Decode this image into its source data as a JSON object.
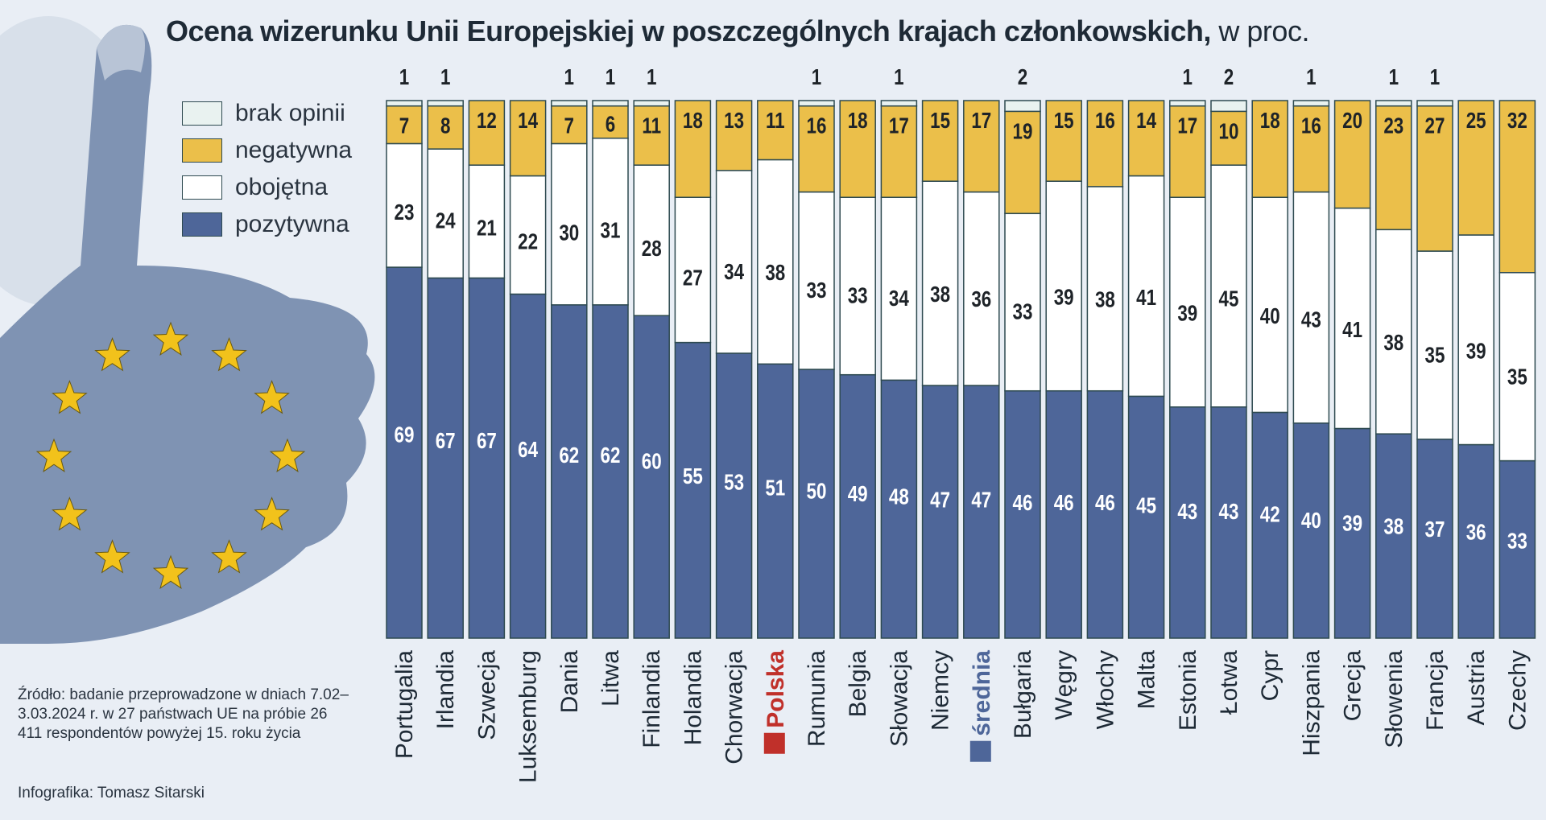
{
  "title": "Ocena wizerunku Unii Europejskiej w poszczególnych krajach członkowskich,",
  "title_unit": "w proc.",
  "legend": [
    {
      "label": "brak opinii",
      "color": "#e9f2f0"
    },
    {
      "label": "negatywna",
      "color": "#ebbf4a"
    },
    {
      "label": "obojętna",
      "color": "#ffffff"
    },
    {
      "label": "pozytywna",
      "color": "#4e6699"
    }
  ],
  "source": "Źródło: badanie przeprowadzone w dniach 7.02–3.03.2024 r. w 27 państwach UE na próbie 26 411 respondentów powyżej 15. roku życia",
  "credit": "Infografika: Tomasz Sitarski",
  "chart_data": {
    "type": "bar",
    "stacked": true,
    "orientation": "vertical",
    "title": "Ocena wizerunku Unii Europejskiej w poszczególnych krajach członkowskich, w proc.",
    "categories": [
      "Portugalia",
      "Irlandia",
      "Szwecja",
      "Luksemburg",
      "Dania",
      "Litwa",
      "Finlandia",
      "Holandia",
      "Chorwacja",
      "Polska",
      "Rumunia",
      "Belgia",
      "Słowacja",
      "Niemcy",
      "średnia",
      "Bułgaria",
      "Węgry",
      "Włochy",
      "Malta",
      "Estonia",
      "Łotwa",
      "Cypr",
      "Hiszpania",
      "Grecja",
      "Słowenia",
      "Francja",
      "Austria",
      "Czechy"
    ],
    "highlight": {
      "Polska": "#c0302a",
      "średnia": "#4e6699"
    },
    "series": [
      {
        "name": "pozytywna",
        "color": "#4e6699",
        "values": [
          69,
          67,
          67,
          64,
          62,
          62,
          60,
          55,
          53,
          51,
          50,
          49,
          48,
          47,
          47,
          46,
          46,
          46,
          45,
          43,
          43,
          42,
          40,
          39,
          38,
          37,
          36,
          33
        ]
      },
      {
        "name": "obojętna",
        "color": "#ffffff",
        "values": [
          23,
          24,
          21,
          22,
          30,
          31,
          28,
          27,
          34,
          38,
          33,
          33,
          34,
          38,
          36,
          33,
          39,
          38,
          41,
          39,
          45,
          40,
          43,
          41,
          38,
          35,
          39,
          35
        ]
      },
      {
        "name": "negatywna",
        "color": "#ebbf4a",
        "values": [
          7,
          8,
          12,
          14,
          7,
          6,
          11,
          18,
          13,
          11,
          16,
          18,
          17,
          15,
          17,
          19,
          15,
          16,
          14,
          17,
          10,
          18,
          16,
          20,
          23,
          27,
          25,
          32
        ]
      },
      {
        "name": "brak opinii",
        "color": "#e9f2f0",
        "values": [
          1,
          1,
          0,
          0,
          1,
          1,
          1,
          0,
          0,
          0,
          1,
          0,
          1,
          0,
          0,
          2,
          0,
          0,
          0,
          1,
          2,
          0,
          1,
          0,
          1,
          1,
          0,
          0
        ]
      }
    ],
    "ylim": [
      0,
      100
    ],
    "grid": false,
    "legend_position": "top-left"
  }
}
